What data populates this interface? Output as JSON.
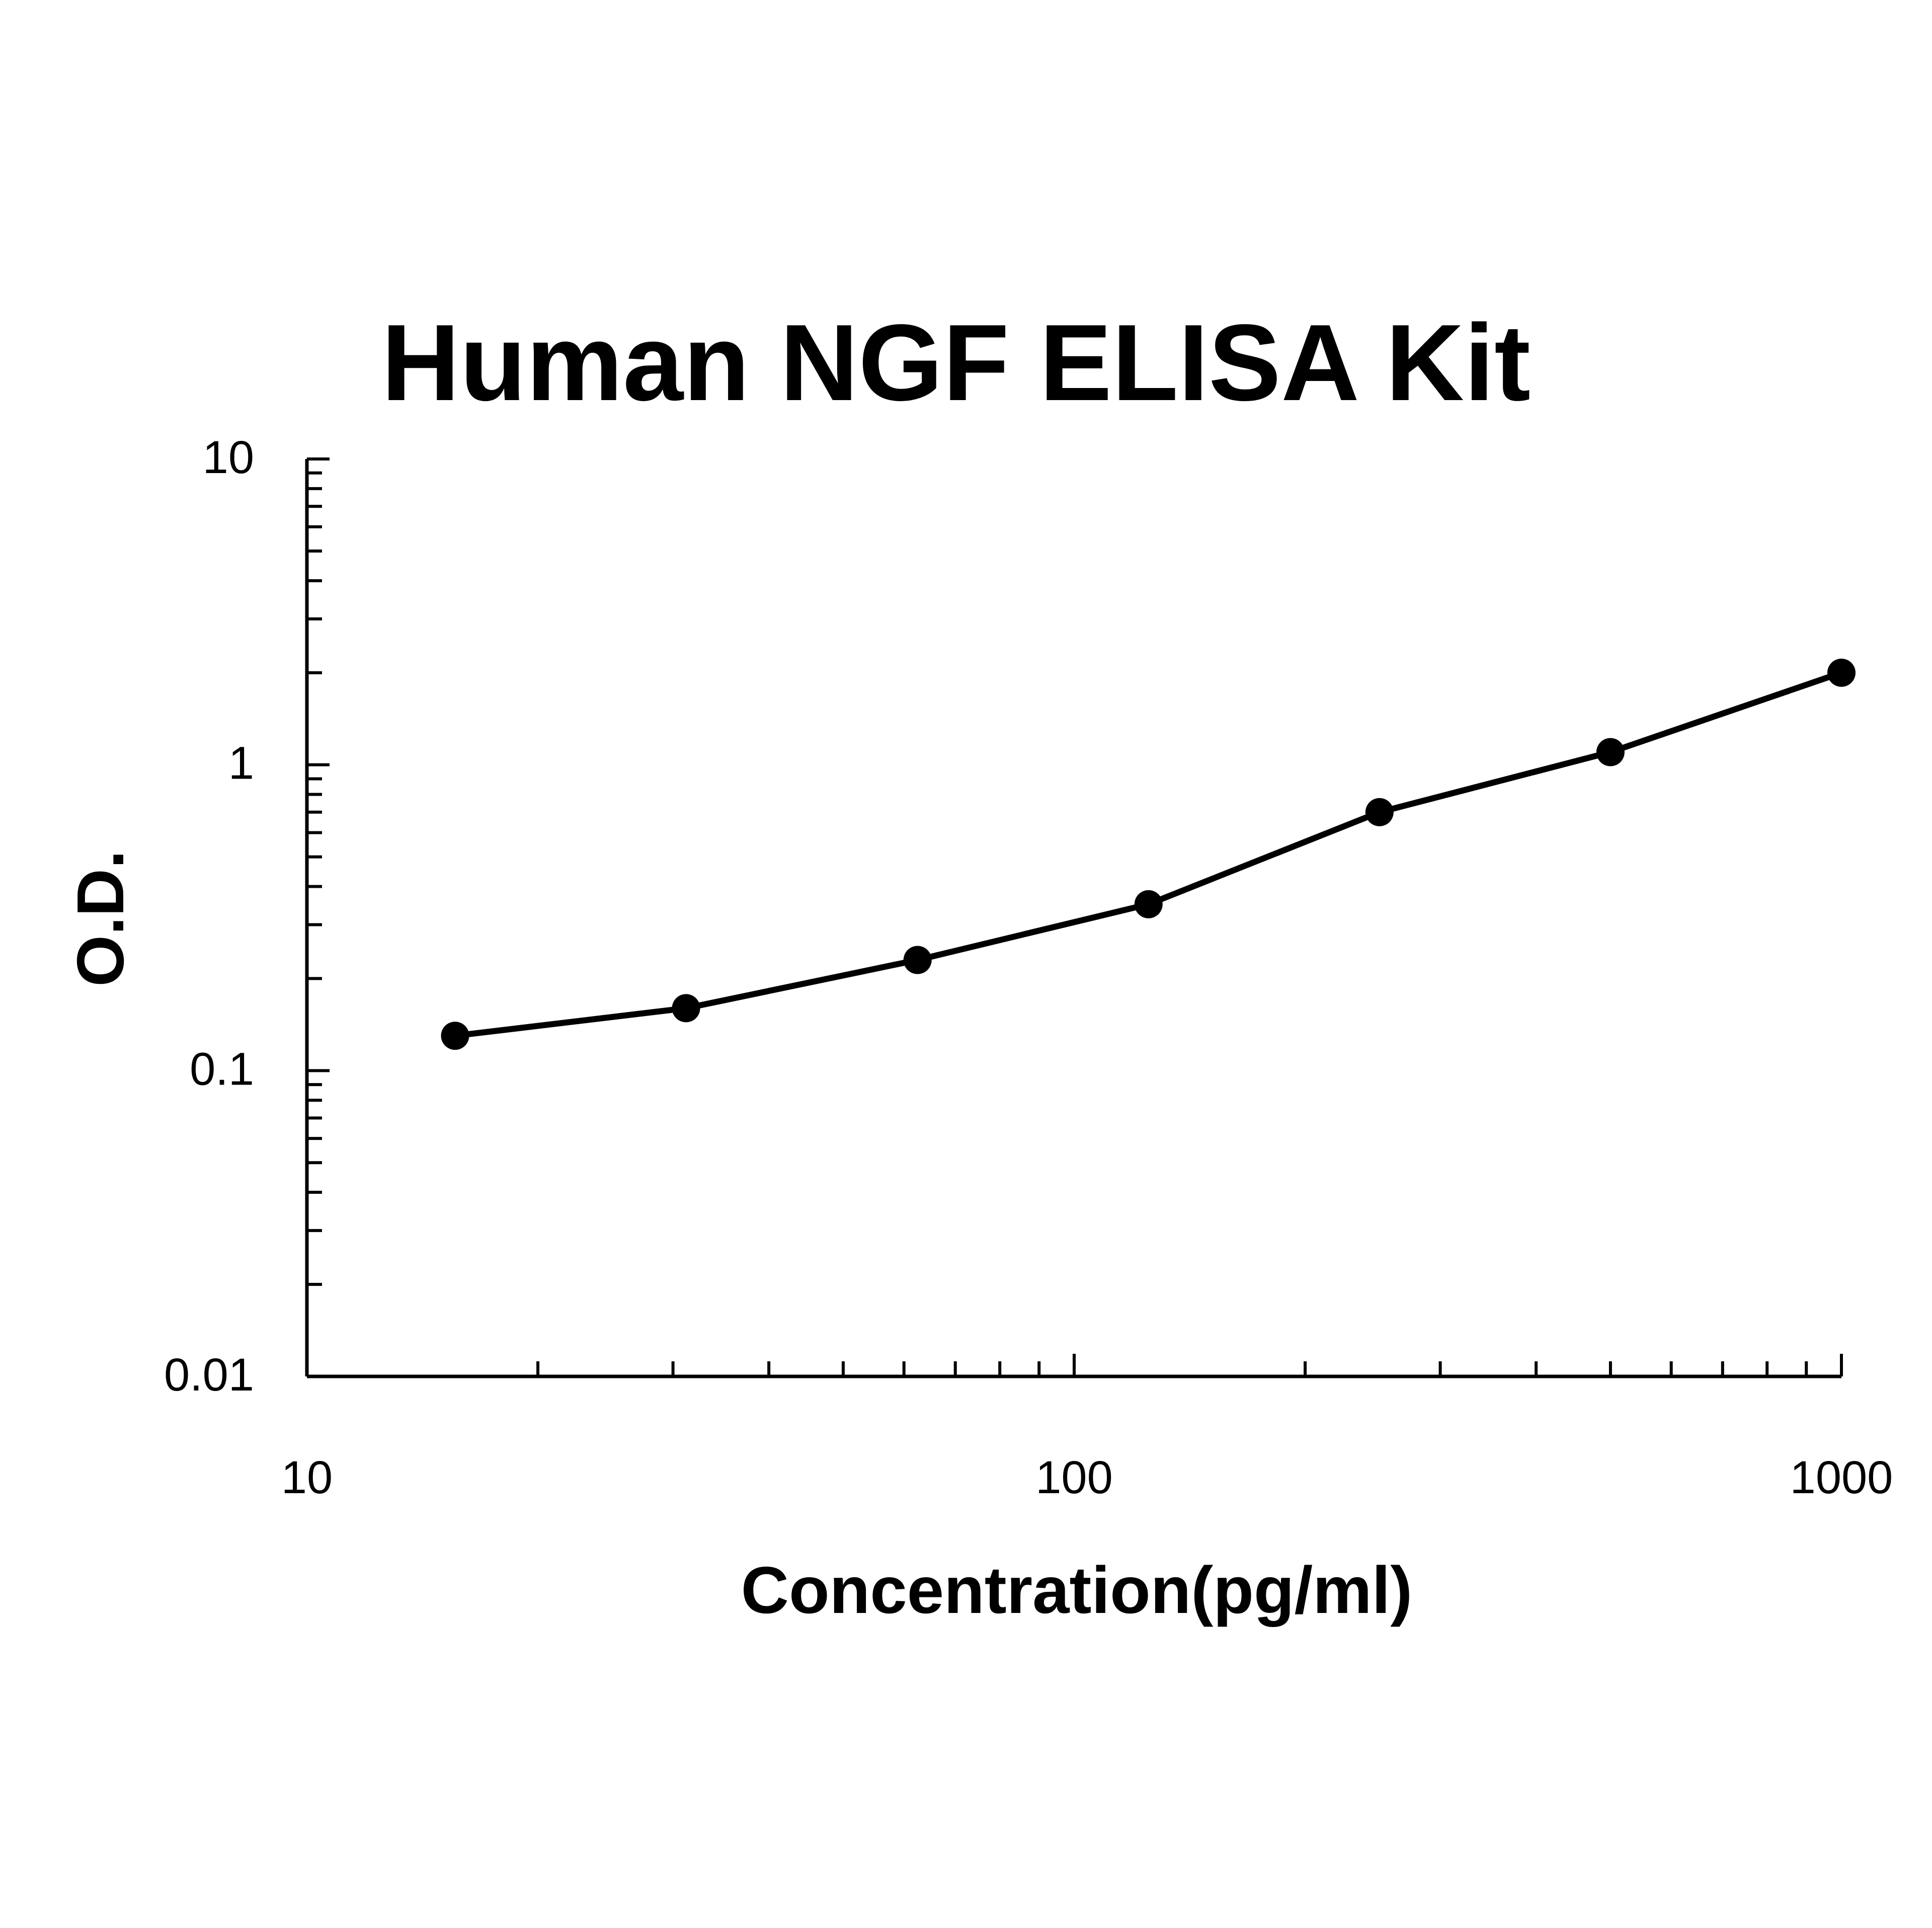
{
  "chart_data": {
    "type": "line",
    "title": "Human NGF ELISA Kit",
    "xlabel": "Concentration(pg/ml)",
    "ylabel": "O.D.",
    "xscale": "log",
    "yscale": "log",
    "xlim": [
      10,
      1000
    ],
    "ylim": [
      0.01,
      10
    ],
    "x_ticks": [
      10,
      100,
      1000
    ],
    "x_tick_labels": [
      "10",
      "100",
      "1000"
    ],
    "y_ticks": [
      0.01,
      0.1,
      1,
      10
    ],
    "y_tick_labels": [
      "0.01",
      "0.1",
      "1",
      "10"
    ],
    "grid": false,
    "legend": "none",
    "series": [
      {
        "x": [
          15.6,
          31.2,
          62.5,
          125,
          250,
          500,
          1000
        ],
        "y": [
          0.13,
          0.16,
          0.23,
          0.35,
          0.7,
          1.1,
          2.0
        ],
        "color": "#000000",
        "marker": "circle"
      }
    ]
  }
}
